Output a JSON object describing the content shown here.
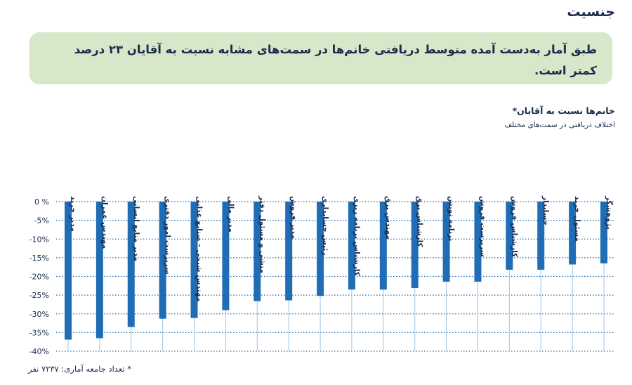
{
  "section_title": "جنسیت",
  "callout_text": "طبق آمار به‌دست آمده متوسط دریافتی خانم‌ها در سمت‌های مشابه نسبت به آقایان ۲۳ درصد کمتر است.",
  "footnote": "* تعداد جامعه آماری: ۷۲۳۷ نفر",
  "colors": {
    "bar": "#1f6db5",
    "callout_bg": "#d6e8c9",
    "grid": "#1f6db5",
    "text": "#1a2b4c"
  },
  "chart_data": {
    "type": "bar",
    "title": "خانم‌ها نسبت به آقایان*",
    "subtitle": "اختلاف دریافتی در سمت‌های مختلف",
    "categories": [
      "پژوهشگر",
      "مسئول خرید",
      "حسابدار",
      "کارشناس فروش",
      "سرپرست فروش",
      "برنامه نویس",
      "کارشناس برق",
      "مهندس برق",
      "کارشناس برنامه ریزی",
      "رئیس حسابداری",
      "مدیر فروش",
      "منشی و مسئول دفتر",
      "مدیر مالی",
      "مهندس شیمی - صنایع غذایی",
      "سرپرست امور دفتری",
      "مدیر منابع انسانی",
      "مهندس عمران",
      "مدیر خرید"
    ],
    "values": [
      -16.5,
      -16.8,
      -18.2,
      -18.2,
      -21.4,
      -21.4,
      -23.1,
      -23.5,
      -23.5,
      -25.2,
      -26.4,
      -26.6,
      -29.0,
      -31.1,
      -31.3,
      -33.5,
      -36.5,
      -36.9
    ],
    "ylim": [
      -40,
      0
    ],
    "yticks": [
      "0 %",
      "-5%",
      "-10%",
      "-15%",
      "-20%",
      "-25%",
      "-30%",
      "-35%",
      "-40%"
    ],
    "ytick_values": [
      0,
      -5,
      -10,
      -15,
      -20,
      -25,
      -30,
      -35,
      -40
    ],
    "grid": true
  }
}
